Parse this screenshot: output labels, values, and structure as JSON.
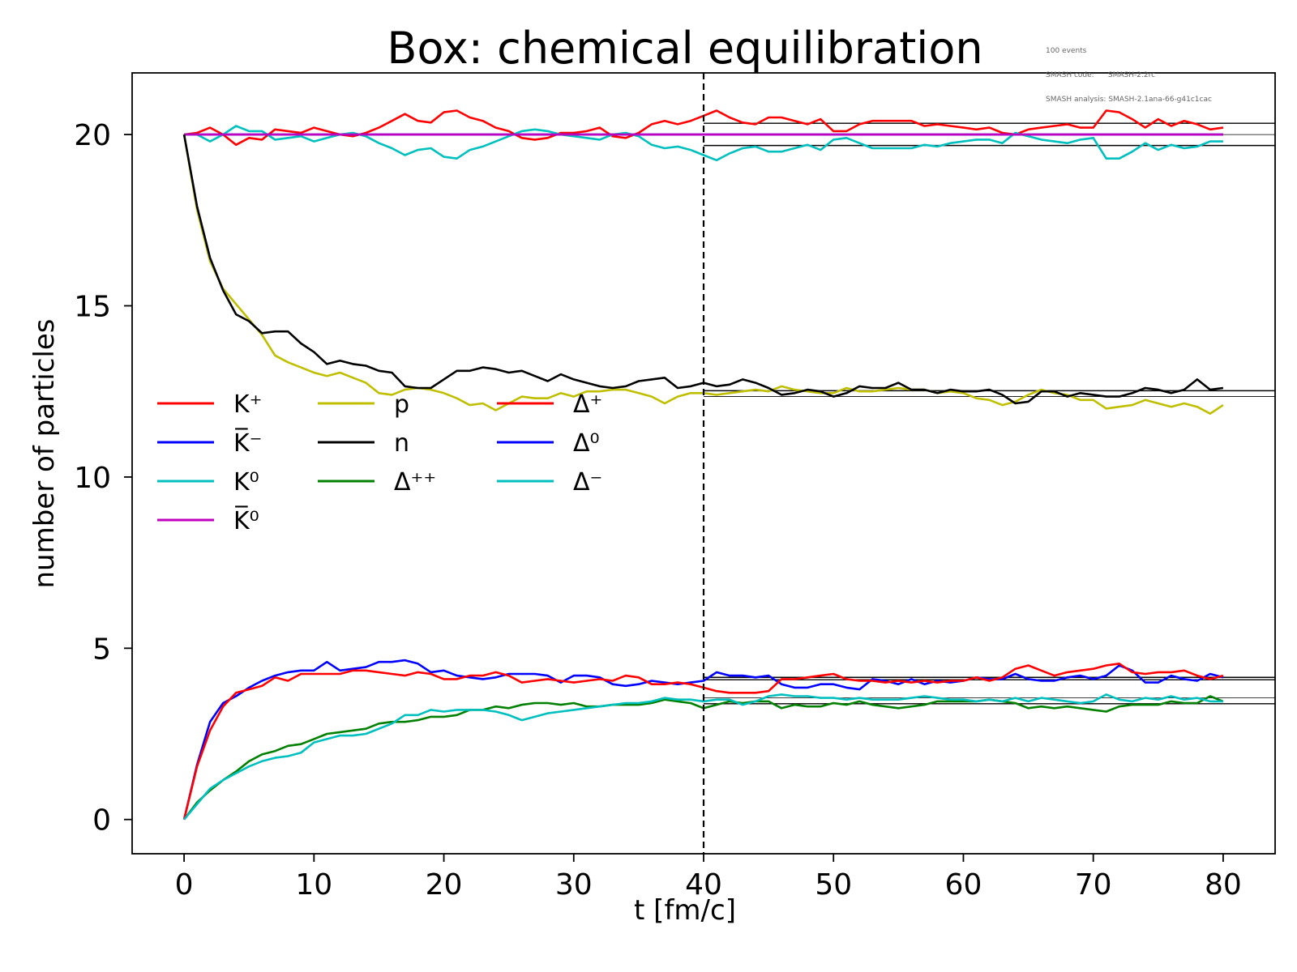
{
  "chart_data": {
    "type": "line",
    "title": "Box: chemical equilibration",
    "xlabel": "t [fm/c]",
    "ylabel": "number of particles",
    "xlim": [
      -4,
      84
    ],
    "ylim": [
      -1,
      21.8
    ],
    "xticks": [
      0,
      10,
      20,
      30,
      40,
      50,
      60,
      70,
      80
    ],
    "yticks": [
      0,
      5,
      10,
      15,
      20
    ],
    "grid": false,
    "legend_position": "center-left",
    "vline": {
      "x": 40,
      "style": "dashed",
      "color": "#000000"
    },
    "equilibrium_lines": {
      "x_start": 40,
      "x_end": 84,
      "values": [
        20.33,
        20.0,
        19.68,
        12.52,
        12.35,
        4.15,
        4.08,
        3.55,
        3.38
      ]
    },
    "series": [
      {
        "name": "K⁺",
        "color": "#ff0000",
        "values": [
          20,
          20.05,
          20.2,
          20.0,
          19.7,
          19.9,
          19.85,
          20.15,
          20.1,
          20.05,
          20.2,
          20.1,
          20.0,
          19.95,
          20.05,
          20.2,
          20.4,
          20.6,
          20.4,
          20.35,
          20.65,
          20.7,
          20.5,
          20.4,
          20.2,
          20.1,
          19.9,
          19.85,
          19.9,
          20.05,
          20.05,
          20.1,
          20.2,
          19.95,
          19.9,
          20.05,
          20.3,
          20.4,
          20.3,
          20.4,
          20.55,
          20.7,
          20.5,
          20.35,
          20.3,
          20.5,
          20.5,
          20.4,
          20.3,
          20.45,
          20.1,
          20.1,
          20.3,
          20.4,
          20.4,
          20.4,
          20.4,
          20.25,
          20.3,
          20.25,
          20.2,
          20.15,
          20.2,
          20.05,
          20.0,
          20.15,
          20.2,
          20.25,
          20.3,
          20.2,
          20.2,
          20.7,
          20.65,
          20.45,
          20.2,
          20.45,
          20.25,
          20.4,
          20.3,
          20.15,
          20.2
        ]
      },
      {
        "name": "K̅⁻",
        "color": "#0000ff",
        "values": [
          20,
          20,
          20,
          20,
          20,
          20,
          20,
          20,
          20,
          20,
          20,
          20,
          20,
          20,
          20,
          20,
          20,
          20,
          20,
          20,
          20,
          20,
          20,
          20,
          20,
          20,
          20,
          20,
          20,
          20,
          20,
          20,
          20,
          20,
          20,
          20,
          20,
          20,
          20,
          20,
          20,
          20,
          20,
          20,
          20,
          20,
          20,
          20,
          20,
          20,
          20,
          20,
          20,
          20,
          20,
          20,
          20,
          20,
          20,
          20,
          20,
          20,
          20,
          20,
          20,
          20,
          20,
          20,
          20,
          20,
          20,
          20,
          20,
          20,
          20,
          20,
          20,
          20,
          20,
          20,
          20
        ]
      },
      {
        "name": "K⁰",
        "color": "#00bfbf",
        "values": [
          20,
          20.0,
          19.8,
          20.0,
          20.25,
          20.1,
          20.1,
          19.85,
          19.9,
          19.95,
          19.8,
          19.9,
          20.0,
          20.05,
          19.95,
          19.75,
          19.6,
          19.4,
          19.55,
          19.6,
          19.35,
          19.3,
          19.55,
          19.65,
          19.8,
          19.95,
          20.1,
          20.15,
          20.1,
          20.0,
          19.95,
          19.9,
          19.85,
          20.0,
          20.05,
          19.95,
          19.7,
          19.6,
          19.65,
          19.55,
          19.4,
          19.25,
          19.45,
          19.6,
          19.65,
          19.5,
          19.5,
          19.6,
          19.7,
          19.55,
          19.85,
          19.9,
          19.75,
          19.6,
          19.6,
          19.6,
          19.6,
          19.7,
          19.65,
          19.75,
          19.8,
          19.85,
          19.85,
          19.75,
          20.05,
          19.95,
          19.85,
          19.8,
          19.75,
          19.85,
          19.9,
          19.3,
          19.3,
          19.5,
          19.75,
          19.55,
          19.7,
          19.6,
          19.65,
          19.8,
          19.8
        ]
      },
      {
        "name": "K̅⁰",
        "color": "#bf00bf",
        "values": [
          20,
          20,
          20,
          20,
          20,
          20,
          20,
          20,
          20,
          20,
          20,
          20,
          20,
          20,
          20,
          20,
          20,
          20,
          20,
          20,
          20,
          20,
          20,
          20,
          20,
          20,
          20,
          20,
          20,
          20,
          20,
          20,
          20,
          20,
          20,
          20,
          20,
          20,
          20,
          20,
          20,
          20,
          20,
          20,
          20,
          20,
          20,
          20,
          20,
          20,
          20,
          20,
          20,
          20,
          20,
          20,
          20,
          20,
          20,
          20,
          20,
          20,
          20,
          20,
          20,
          20,
          20,
          20,
          20,
          20,
          20,
          20,
          20,
          20,
          20,
          20,
          20,
          20,
          20,
          20,
          20
        ]
      },
      {
        "name": "p",
        "color": "#bfbf00",
        "values": [
          20,
          17.8,
          16.3,
          15.5,
          15.05,
          14.6,
          14.15,
          13.55,
          13.35,
          13.2,
          13.05,
          12.95,
          13.05,
          12.9,
          12.75,
          12.45,
          12.4,
          12.55,
          12.6,
          12.55,
          12.45,
          12.3,
          12.1,
          12.15,
          11.95,
          12.15,
          12.35,
          12.3,
          12.3,
          12.45,
          12.35,
          12.5,
          12.5,
          12.55,
          12.55,
          12.45,
          12.35,
          12.15,
          12.35,
          12.45,
          12.45,
          12.4,
          12.45,
          12.5,
          12.55,
          12.5,
          12.65,
          12.55,
          12.5,
          12.45,
          12.45,
          12.6,
          12.5,
          12.5,
          12.55,
          12.6,
          12.55,
          12.55,
          12.45,
          12.5,
          12.45,
          12.3,
          12.25,
          12.1,
          12.2,
          12.4,
          12.55,
          12.45,
          12.4,
          12.25,
          12.25,
          12.0,
          12.05,
          12.1,
          12.25,
          12.15,
          12.05,
          12.15,
          12.05,
          11.85,
          12.1
        ]
      },
      {
        "name": "n",
        "color": "#000000",
        "values": [
          20,
          17.9,
          16.4,
          15.45,
          14.75,
          14.55,
          14.2,
          14.25,
          14.25,
          13.9,
          13.65,
          13.3,
          13.4,
          13.3,
          13.25,
          13.1,
          13.05,
          12.65,
          12.6,
          12.6,
          12.85,
          13.1,
          13.1,
          13.2,
          13.15,
          13.05,
          13.1,
          12.95,
          12.8,
          13.0,
          12.85,
          12.75,
          12.65,
          12.6,
          12.65,
          12.8,
          12.85,
          12.9,
          12.6,
          12.65,
          12.75,
          12.65,
          12.7,
          12.85,
          12.75,
          12.6,
          12.4,
          12.45,
          12.55,
          12.5,
          12.35,
          12.45,
          12.65,
          12.6,
          12.6,
          12.75,
          12.55,
          12.55,
          12.45,
          12.55,
          12.5,
          12.5,
          12.55,
          12.4,
          12.15,
          12.2,
          12.5,
          12.5,
          12.35,
          12.45,
          12.4,
          12.35,
          12.35,
          12.45,
          12.6,
          12.55,
          12.45,
          12.55,
          12.85,
          12.55,
          12.6
        ]
      },
      {
        "name": "Δ⁺⁺",
        "color": "#008000",
        "values": [
          0,
          0.5,
          0.85,
          1.15,
          1.4,
          1.7,
          1.9,
          2.0,
          2.15,
          2.2,
          2.35,
          2.5,
          2.55,
          2.6,
          2.65,
          2.8,
          2.85,
          2.85,
          2.9,
          3.0,
          3.0,
          3.05,
          3.2,
          3.2,
          3.3,
          3.25,
          3.35,
          3.4,
          3.4,
          3.35,
          3.4,
          3.3,
          3.3,
          3.35,
          3.35,
          3.35,
          3.4,
          3.5,
          3.45,
          3.4,
          3.25,
          3.35,
          3.45,
          3.4,
          3.45,
          3.45,
          3.25,
          3.35,
          3.3,
          3.3,
          3.4,
          3.35,
          3.45,
          3.35,
          3.3,
          3.25,
          3.3,
          3.35,
          3.45,
          3.45,
          3.45,
          3.45,
          3.5,
          3.45,
          3.4,
          3.25,
          3.3,
          3.25,
          3.3,
          3.25,
          3.2,
          3.15,
          3.3,
          3.35,
          3.35,
          3.35,
          3.45,
          3.4,
          3.4,
          3.6,
          3.45
        ]
      },
      {
        "name": "Δ⁰",
        "color": "#0000ff",
        "values": [
          0,
          1.6,
          2.85,
          3.4,
          3.6,
          3.85,
          4.05,
          4.2,
          4.3,
          4.35,
          4.35,
          4.6,
          4.35,
          4.4,
          4.45,
          4.6,
          4.6,
          4.65,
          4.55,
          4.3,
          4.35,
          4.2,
          4.15,
          4.1,
          4.15,
          4.25,
          4.25,
          4.25,
          4.2,
          4.0,
          4.2,
          4.2,
          4.15,
          3.95,
          3.9,
          3.95,
          4.05,
          4.0,
          3.95,
          4.0,
          4.05,
          4.3,
          4.2,
          4.2,
          4.15,
          4.2,
          3.95,
          3.85,
          3.85,
          3.95,
          3.95,
          3.85,
          3.8,
          4.1,
          4.05,
          3.95,
          4.1,
          3.95,
          4.05,
          4.0,
          4.05,
          4.15,
          4.1,
          4.1,
          4.25,
          4.1,
          4.05,
          4.05,
          4.15,
          4.2,
          4.1,
          4.2,
          4.5,
          4.35,
          4.0,
          4.0,
          4.2,
          4.1,
          4.05,
          4.25,
          4.15
        ]
      },
      {
        "name": "Δ⁺",
        "color": "#ff0000",
        "values": [
          0,
          1.55,
          2.6,
          3.3,
          3.7,
          3.8,
          3.9,
          4.15,
          4.05,
          4.25,
          4.25,
          4.25,
          4.25,
          4.35,
          4.35,
          4.3,
          4.25,
          4.2,
          4.3,
          4.25,
          4.1,
          4.1,
          4.2,
          4.2,
          4.3,
          4.2,
          4.0,
          4.05,
          4.1,
          4.05,
          4.0,
          4.05,
          4.1,
          4.05,
          4.2,
          4.15,
          3.95,
          3.95,
          4.0,
          3.95,
          3.85,
          3.75,
          3.7,
          3.7,
          3.7,
          3.75,
          4.1,
          4.1,
          4.15,
          4.2,
          4.25,
          4.1,
          4.05,
          4.05,
          4.0,
          4.05,
          4.0,
          4.05,
          4.0,
          4.05,
          4.05,
          4.15,
          4.05,
          4.15,
          4.4,
          4.5,
          4.35,
          4.2,
          4.3,
          4.35,
          4.4,
          4.5,
          4.55,
          4.3,
          4.25,
          4.3,
          4.3,
          4.35,
          4.2,
          4.1,
          4.2
        ]
      },
      {
        "name": "Δ⁻",
        "color": "#00bfbf",
        "values": [
          0,
          0.45,
          0.9,
          1.15,
          1.35,
          1.55,
          1.7,
          1.8,
          1.85,
          1.95,
          2.25,
          2.35,
          2.45,
          2.45,
          2.5,
          2.65,
          2.8,
          3.05,
          3.05,
          3.2,
          3.15,
          3.2,
          3.2,
          3.2,
          3.15,
          3.05,
          2.9,
          3.0,
          3.1,
          3.15,
          3.2,
          3.25,
          3.3,
          3.35,
          3.4,
          3.4,
          3.45,
          3.55,
          3.5,
          3.5,
          3.45,
          3.5,
          3.5,
          3.35,
          3.45,
          3.6,
          3.65,
          3.6,
          3.6,
          3.55,
          3.55,
          3.5,
          3.55,
          3.5,
          3.5,
          3.5,
          3.55,
          3.6,
          3.55,
          3.5,
          3.5,
          3.45,
          3.5,
          3.45,
          3.55,
          3.45,
          3.55,
          3.5,
          3.45,
          3.4,
          3.45,
          3.65,
          3.5,
          3.45,
          3.55,
          3.5,
          3.6,
          3.5,
          3.55,
          3.45,
          3.45
        ]
      }
    ]
  },
  "meta": {
    "events": "100 events",
    "code_label": "SMASH code:",
    "code_value": "SMASH-2.2rc",
    "analysis_label": "SMASH analysis:",
    "analysis_value": "SMASH-2.1ana-66-g41c1cac"
  }
}
